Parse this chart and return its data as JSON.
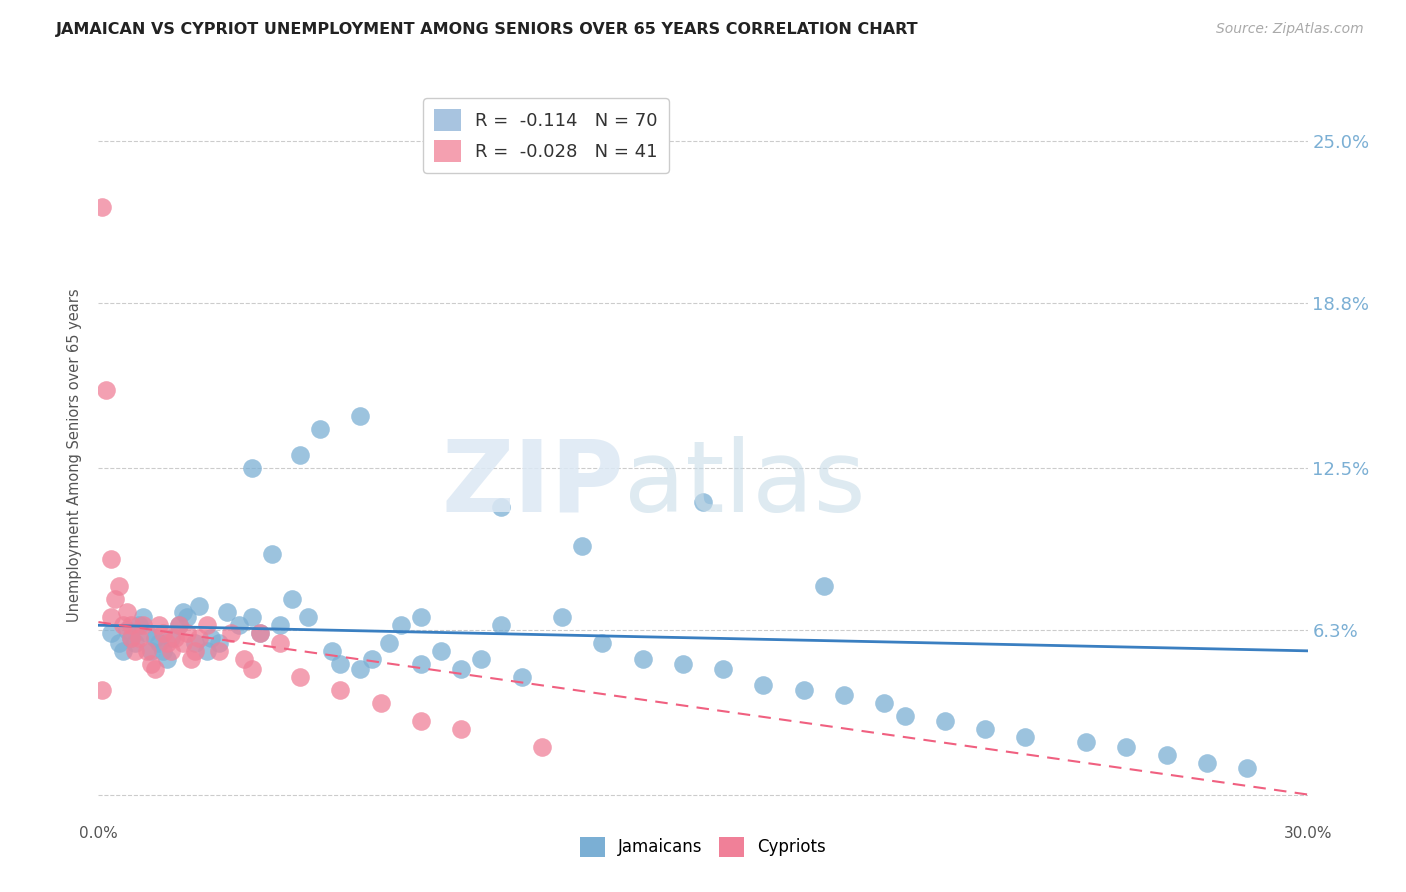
{
  "title": "JAMAICAN VS CYPRIOT UNEMPLOYMENT AMONG SENIORS OVER 65 YEARS CORRELATION CHART",
  "source": "Source: ZipAtlas.com",
  "xlabel": "",
  "ylabel": "Unemployment Among Seniors over 65 years",
  "xlim": [
    0.0,
    0.3
  ],
  "ylim": [
    -0.01,
    0.27
  ],
  "xticks": [
    0.0,
    0.05,
    0.1,
    0.15,
    0.2,
    0.25,
    0.3
  ],
  "xticklabels": [
    "0.0%",
    "",
    "",
    "",
    "",
    "",
    "30.0%"
  ],
  "ytick_positions": [
    0.0,
    0.063,
    0.125,
    0.188,
    0.25
  ],
  "right_ytick_positions": [
    0.063,
    0.125,
    0.188,
    0.25
  ],
  "right_ytick_labels": [
    "6.3%",
    "12.5%",
    "18.8%",
    "25.0%"
  ],
  "legend_r1": "R =  -0.114   N = 70",
  "legend_r2": "R =  -0.028   N = 41",
  "legend_color1": "#a8c4e0",
  "legend_color2": "#f4a0b0",
  "jamaicans_color": "#7bafd4",
  "cypriots_color": "#f08098",
  "trendline_jamaicans_color": "#3a7fc1",
  "trendline_cypriots_color": "#f06080",
  "background_color": "#ffffff",
  "grid_color": "#cccccc",
  "jamaicans_x": [
    0.003,
    0.005,
    0.006,
    0.007,
    0.008,
    0.009,
    0.01,
    0.011,
    0.012,
    0.013,
    0.014,
    0.015,
    0.016,
    0.017,
    0.018,
    0.02,
    0.021,
    0.022,
    0.024,
    0.025,
    0.027,
    0.028,
    0.03,
    0.032,
    0.035,
    0.038,
    0.04,
    0.043,
    0.045,
    0.048,
    0.052,
    0.055,
    0.058,
    0.06,
    0.065,
    0.068,
    0.072,
    0.075,
    0.08,
    0.085,
    0.09,
    0.095,
    0.1,
    0.105,
    0.115,
    0.125,
    0.135,
    0.145,
    0.155,
    0.165,
    0.175,
    0.185,
    0.195,
    0.2,
    0.21,
    0.22,
    0.23,
    0.245,
    0.255,
    0.265,
    0.275,
    0.285,
    0.038,
    0.05,
    0.065,
    0.08,
    0.1,
    0.12,
    0.15,
    0.18
  ],
  "jamaicans_y": [
    0.062,
    0.058,
    0.055,
    0.063,
    0.06,
    0.058,
    0.065,
    0.068,
    0.062,
    0.055,
    0.06,
    0.058,
    0.055,
    0.052,
    0.06,
    0.065,
    0.07,
    0.068,
    0.058,
    0.072,
    0.055,
    0.06,
    0.058,
    0.07,
    0.065,
    0.068,
    0.062,
    0.092,
    0.065,
    0.075,
    0.068,
    0.14,
    0.055,
    0.05,
    0.048,
    0.052,
    0.058,
    0.065,
    0.05,
    0.055,
    0.048,
    0.052,
    0.065,
    0.045,
    0.068,
    0.058,
    0.052,
    0.05,
    0.048,
    0.042,
    0.04,
    0.038,
    0.035,
    0.03,
    0.028,
    0.025,
    0.022,
    0.02,
    0.018,
    0.015,
    0.012,
    0.01,
    0.125,
    0.13,
    0.145,
    0.068,
    0.11,
    0.095,
    0.112,
    0.08
  ],
  "cypriots_x": [
    0.001,
    0.002,
    0.003,
    0.003,
    0.004,
    0.005,
    0.006,
    0.007,
    0.008,
    0.008,
    0.009,
    0.01,
    0.011,
    0.012,
    0.013,
    0.014,
    0.015,
    0.016,
    0.017,
    0.018,
    0.019,
    0.02,
    0.021,
    0.022,
    0.023,
    0.024,
    0.025,
    0.027,
    0.03,
    0.033,
    0.036,
    0.038,
    0.04,
    0.045,
    0.05,
    0.06,
    0.07,
    0.08,
    0.09,
    0.11,
    0.001
  ],
  "cypriots_y": [
    0.225,
    0.155,
    0.09,
    0.068,
    0.075,
    0.08,
    0.065,
    0.07,
    0.065,
    0.06,
    0.055,
    0.06,
    0.065,
    0.055,
    0.05,
    0.048,
    0.065,
    0.062,
    0.058,
    0.055,
    0.06,
    0.065,
    0.058,
    0.062,
    0.052,
    0.055,
    0.06,
    0.065,
    0.055,
    0.062,
    0.052,
    0.048,
    0.062,
    0.058,
    0.045,
    0.04,
    0.035,
    0.028,
    0.025,
    0.018,
    0.04
  ],
  "trendline_j_x0": 0.0,
  "trendline_j_y0": 0.0648,
  "trendline_j_x1": 0.3,
  "trendline_j_y1": 0.055,
  "trendline_c_x0": 0.0,
  "trendline_c_y0": 0.066,
  "trendline_c_x1": 0.3,
  "trendline_c_y1": 0.0
}
